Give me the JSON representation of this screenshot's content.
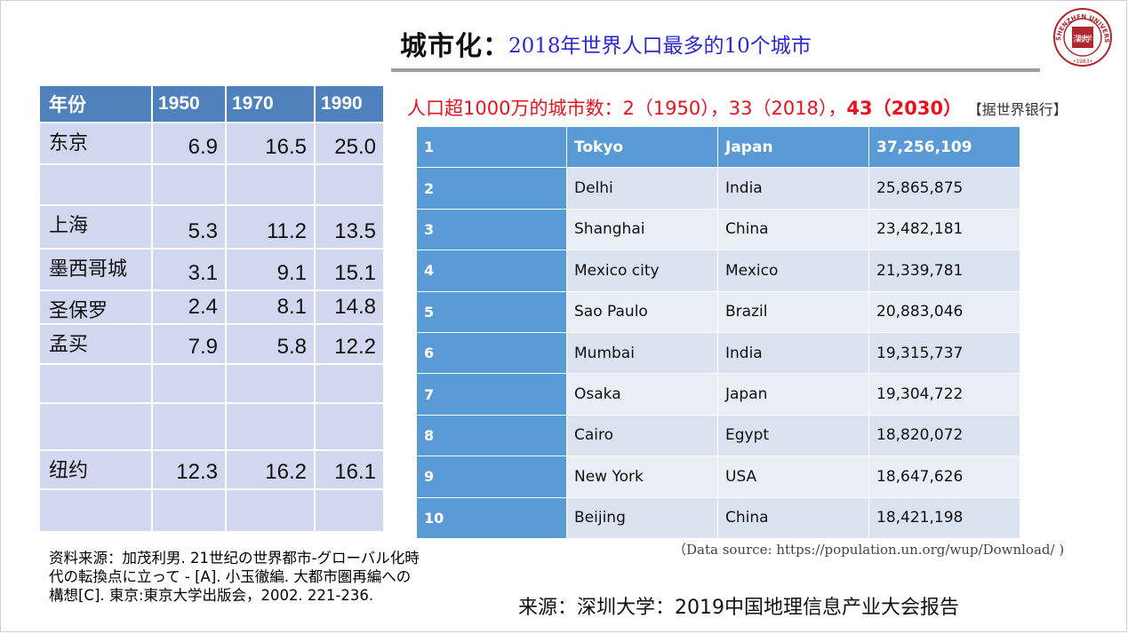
{
  "title": {
    "main": "城市化：",
    "sub": "2018年世界人口最多的10个城市"
  },
  "seal": {
    "text": "SHENZHEN UNIVERSITY",
    "year": "•1983•",
    "inner": "深圳大学"
  },
  "left_table": {
    "headers": [
      "年份",
      "1950",
      "1970",
      "1990"
    ],
    "rows": [
      {
        "city": "东京",
        "v1950": "6.9",
        "v1970": "16.5",
        "v1990": "25.0"
      },
      {
        "city": "",
        "v1950": "",
        "v1970": "",
        "v1990": ""
      },
      {
        "city": "上海",
        "v1950": "5.3",
        "v1970": "11.2",
        "v1990": "13.5"
      },
      {
        "city": "墨西哥城",
        "v1950": "3.1",
        "v1970": "9.1",
        "v1990": "15.1"
      },
      {
        "city": "圣保罗",
        "v1950": "2.4",
        "v1970": "8.1",
        "v1990": "14.8"
      },
      {
        "city": "孟买",
        "v1950": "7.9",
        "v1970": "5.8",
        "v1990": "12.2"
      },
      {
        "city": "",
        "v1950": "",
        "v1970": "",
        "v1990": ""
      },
      {
        "city": "",
        "v1950": "",
        "v1970": "",
        "v1990": ""
      },
      {
        "city": "纽约",
        "v1950": "12.3",
        "v1970": "16.2",
        "v1990": "16.1"
      },
      {
        "city": "",
        "v1950": "",
        "v1970": "",
        "v1990": ""
      }
    ]
  },
  "note": "资料来源：加茂利男. 21世纪の世界都市-グローバル化時代の転換点に立って - [A]. 小玉徹編. 大都市圏再編への構想[C]. 東京:東京大学出版会，2002. 221-236.",
  "subhead": {
    "prefix": "人口超1000万的城市数：2（1950），33（2018），",
    "bold": "43（2030）",
    "source": "【据世界银行】"
  },
  "right_table": {
    "rows": [
      {
        "rank": "1",
        "city": "Tokyo",
        "country": "Japan",
        "population": "37,256,109"
      },
      {
        "rank": "2",
        "city": "Delhi",
        "country": "India",
        "population": "25,865,875"
      },
      {
        "rank": "3",
        "city": "Shanghai",
        "country": "China",
        "population": "23,482,181"
      },
      {
        "rank": "4",
        "city": "Mexico city",
        "country": "Mexico",
        "population": "21,339,781"
      },
      {
        "rank": "5",
        "city": "Sao Paulo",
        "country": "Brazil",
        "population": "20,883,046"
      },
      {
        "rank": "6",
        "city": "Mumbai",
        "country": "India",
        "population": "19,315,737"
      },
      {
        "rank": "7",
        "city": "Osaka",
        "country": "Japan",
        "population": "19,304,722"
      },
      {
        "rank": "8",
        "city": "Cairo",
        "country": "Egypt",
        "population": "18,820,072"
      },
      {
        "rank": "9",
        "city": "New York",
        "country": "USA",
        "population": "18,647,626"
      },
      {
        "rank": "10",
        "city": "Beijing",
        "country": "China",
        "population": "18,421,198"
      }
    ]
  },
  "data_source": "（Data source: https://population.un.org/wup/Download/ )",
  "footer_source": "来源：深圳大学：2019中国地理信息产业大会报告",
  "colors": {
    "header_blue": "#4f81bd",
    "rank_blue": "#5b9bd5",
    "row_light": "#d1d7ef",
    "accent_red": "#e8121f",
    "title_blue": "#2a2ad0",
    "seal_red": "#b0272d"
  }
}
